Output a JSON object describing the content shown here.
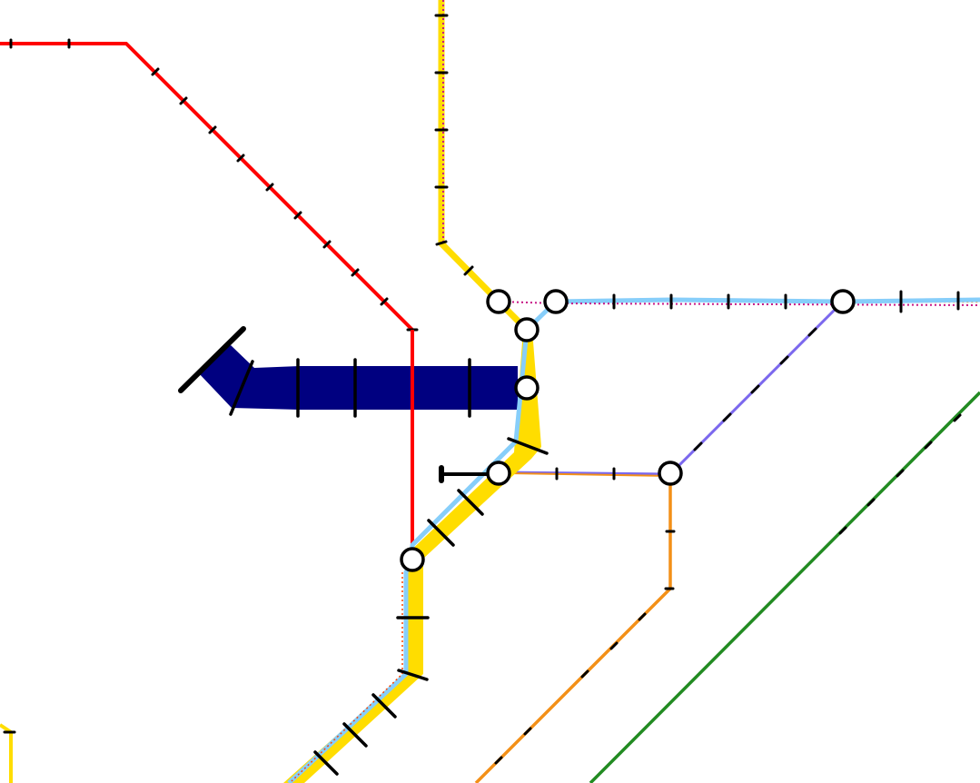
{
  "map": {
    "background": "#ffffff",
    "line_colors": {
      "red": "#ff0000",
      "yellow": "#ffdd00",
      "light_blue": "#87cefa",
      "navy": "#000080",
      "orange": "#f39018",
      "green": "#228b22",
      "purple": "#7b68ee",
      "magenta_dotted": "#c71585"
    },
    "station_count": 8,
    "icons": [
      "station-interchange-icon",
      "line-terminus-icon"
    ]
  }
}
